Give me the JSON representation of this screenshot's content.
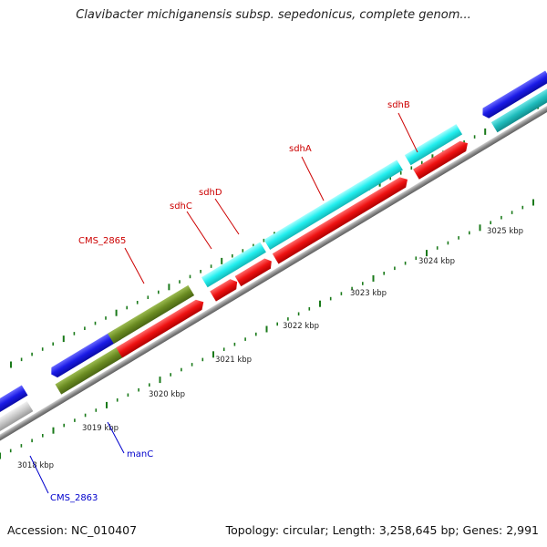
{
  "title": "Clavibacter michiganensis subsp. sepedonicus, complete genom...",
  "footer": {
    "accession": "Accession: NC_010407",
    "topology": "Topology: circular; Length: 3,258,645 bp; Genes: 2,991"
  },
  "colors": {
    "backbone": "#8c8c8c",
    "red_gene": "#ee1111",
    "cyan_gene": "#22eeee",
    "blue_gene": "#1a1ae6",
    "olive_gene": "#6b8c22",
    "teal_gene": "#1fbcbc",
    "gray_gene": "#c8c8c8",
    "tick_green": "#1a7a1a",
    "label_red": "#cc0000",
    "label_blue": "#0000cc"
  },
  "ticks": [
    "3018 kbp",
    "3019 kbp",
    "3020 kbp",
    "3021 kbp",
    "3022 kbp",
    "3023 kbp",
    "3024 kbp",
    "3025 kbp"
  ],
  "gene_labels": [
    {
      "name": "sdhB",
      "color": "red"
    },
    {
      "name": "sdhA",
      "color": "red"
    },
    {
      "name": "sdhD",
      "color": "red"
    },
    {
      "name": "sdhC",
      "color": "red"
    },
    {
      "name": "CMS_2865",
      "color": "red"
    },
    {
      "name": "manC",
      "color": "blue"
    },
    {
      "name": "CMS_2863",
      "color": "blue"
    }
  ]
}
